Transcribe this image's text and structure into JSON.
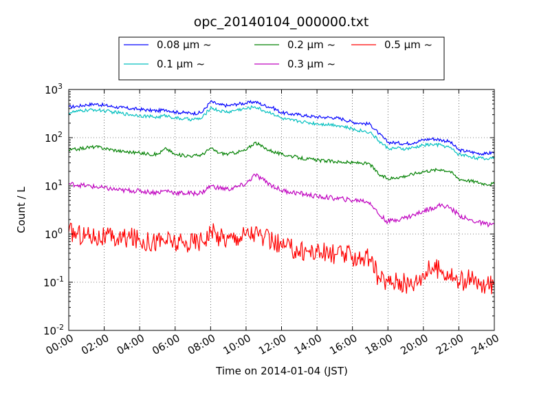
{
  "chart_data": {
    "type": "line",
    "title": "opc_20140104_000000.txt",
    "xlabel": "Time on 2014-01-04 (JST)",
    "ylabel": "Count / L",
    "x_unit": "hours",
    "xlim": [
      0,
      24
    ],
    "ylim": [
      0.01,
      1000
    ],
    "y_scale": "log",
    "grid": true,
    "legend_position": "top-center",
    "x_ticks": [
      "00:00",
      "02:00",
      "04:00",
      "06:00",
      "08:00",
      "10:00",
      "12:00",
      "14:00",
      "16:00",
      "18:00",
      "20:00",
      "22:00",
      "24:00"
    ],
    "y_ticks": [
      {
        "value": 0.01,
        "base": "10",
        "exp": "-2"
      },
      {
        "value": 0.1,
        "base": "10",
        "exp": "-1"
      },
      {
        "value": 1,
        "base": "10",
        "exp": "0"
      },
      {
        "value": 10,
        "base": "10",
        "exp": "1"
      },
      {
        "value": 100,
        "base": "10",
        "exp": "2"
      },
      {
        "value": 1000,
        "base": "10",
        "exp": "3"
      }
    ],
    "series": [
      {
        "name": "0.08 μm ~",
        "color": "#0000ff",
        "x": [
          0,
          0.5,
          1,
          1.5,
          2,
          2.5,
          3,
          3.5,
          4,
          4.5,
          5,
          5.5,
          6,
          6.5,
          7,
          7.5,
          8,
          8.5,
          9,
          9.5,
          10,
          10.5,
          11,
          11.5,
          12,
          12.5,
          13,
          13.5,
          14,
          14.5,
          15,
          15.5,
          16,
          16.5,
          17,
          17.5,
          18,
          18.5,
          19,
          19.5,
          20,
          20.5,
          21,
          21.5,
          22,
          22.5,
          23,
          23.5,
          24
        ],
        "y": [
          430,
          450,
          480,
          500,
          470,
          440,
          420,
          400,
          390,
          370,
          360,
          380,
          340,
          330,
          320,
          330,
          560,
          480,
          460,
          500,
          520,
          560,
          470,
          420,
          330,
          310,
          300,
          280,
          270,
          265,
          260,
          240,
          210,
          200,
          190,
          120,
          80,
          78,
          75,
          80,
          90,
          95,
          90,
          82,
          55,
          52,
          48,
          46,
          50
        ]
      },
      {
        "name": "0.1 μm ~",
        "color": "#00bfbf",
        "x": [
          0,
          0.5,
          1,
          1.5,
          2,
          2.5,
          3,
          3.5,
          4,
          4.5,
          5,
          5.5,
          6,
          6.5,
          7,
          7.5,
          8,
          8.5,
          9,
          9.5,
          10,
          10.5,
          11,
          11.5,
          12,
          12.5,
          13,
          13.5,
          14,
          14.5,
          15,
          15.5,
          16,
          16.5,
          17,
          17.5,
          18,
          18.5,
          19,
          19.5,
          20,
          20.5,
          21,
          21.5,
          22,
          22.5,
          23,
          23.5,
          24
        ],
        "y": [
          330,
          350,
          370,
          380,
          360,
          340,
          320,
          300,
          290,
          275,
          265,
          290,
          255,
          245,
          240,
          250,
          420,
          360,
          340,
          380,
          400,
          440,
          360,
          320,
          250,
          230,
          220,
          205,
          195,
          190,
          185,
          170,
          150,
          140,
          130,
          85,
          60,
          60,
          58,
          62,
          70,
          72,
          70,
          62,
          45,
          42,
          38,
          36,
          40
        ]
      },
      {
        "name": "0.2 μm ~",
        "color": "#008000",
        "x": [
          0,
          0.5,
          1,
          1.5,
          2,
          2.5,
          3,
          3.5,
          4,
          4.5,
          5,
          5.5,
          6,
          6.5,
          7,
          7.5,
          8,
          8.5,
          9,
          9.5,
          10,
          10.5,
          11,
          11.5,
          12,
          12.5,
          13,
          13.5,
          14,
          14.5,
          15,
          15.5,
          16,
          16.5,
          17,
          17.5,
          18,
          18.5,
          19,
          19.5,
          20,
          20.5,
          21,
          21.5,
          22,
          22.5,
          23,
          23.5,
          24
        ],
        "y": [
          55,
          58,
          62,
          65,
          60,
          56,
          52,
          50,
          48,
          46,
          45,
          60,
          44,
          43,
          42,
          44,
          60,
          48,
          46,
          50,
          55,
          80,
          62,
          52,
          45,
          42,
          38,
          36,
          34,
          33,
          32,
          31,
          30,
          30,
          28,
          17,
          14,
          15,
          16,
          18,
          20,
          21,
          22,
          20,
          14,
          13,
          12,
          11,
          11
        ]
      },
      {
        "name": "0.3 μm ~",
        "color": "#bf00bf",
        "x": [
          0,
          0.5,
          1,
          1.5,
          2,
          2.5,
          3,
          3.5,
          4,
          4.5,
          5,
          5.5,
          6,
          6.5,
          7,
          7.5,
          8,
          8.5,
          9,
          9.5,
          10,
          10.5,
          11,
          11.5,
          12,
          12.5,
          13,
          13.5,
          14,
          14.5,
          15,
          15.5,
          16,
          16.5,
          17,
          17.5,
          18,
          18.5,
          19,
          19.5,
          20,
          20.5,
          21,
          21.5,
          22,
          22.5,
          23,
          23.5,
          24
        ],
        "y": [
          11,
          10.5,
          10,
          9.5,
          9,
          8.5,
          8,
          8,
          7.8,
          7.5,
          7.3,
          8,
          7.2,
          7,
          7,
          7.2,
          10,
          9,
          8.5,
          9.5,
          11,
          17,
          13,
          10,
          8,
          7.5,
          7,
          6.5,
          6,
          5.8,
          5.5,
          5.3,
          5,
          5,
          4.5,
          2.5,
          1.8,
          2,
          2.2,
          2.5,
          3,
          3.5,
          4,
          3.5,
          2.5,
          2,
          1.8,
          1.6,
          1.6
        ]
      },
      {
        "name": "0.5 μm ~",
        "color": "#ff0000",
        "x": [
          0,
          0.5,
          1,
          1.5,
          2,
          2.5,
          3,
          3.5,
          4,
          4.5,
          5,
          5.5,
          6,
          6.5,
          7,
          7.5,
          8,
          8.5,
          9,
          9.5,
          10,
          10.5,
          11,
          11.5,
          12,
          12.5,
          13,
          13.5,
          14,
          14.5,
          15,
          15.5,
          16,
          16.5,
          17,
          17.5,
          18,
          18.5,
          19,
          19.5,
          20,
          20.5,
          21,
          21.5,
          22,
          22.5,
          23,
          23.5,
          24
        ],
        "y": [
          1.1,
          1.0,
          0.95,
          0.9,
          0.85,
          0.8,
          0.8,
          0.85,
          0.75,
          0.7,
          0.72,
          0.75,
          0.65,
          0.6,
          0.7,
          0.75,
          1.1,
          0.9,
          0.8,
          0.9,
          1.0,
          1.1,
          0.8,
          0.7,
          0.55,
          0.5,
          0.45,
          0.45,
          0.42,
          0.4,
          0.38,
          0.37,
          0.35,
          0.33,
          0.3,
          0.12,
          0.1,
          0.11,
          0.09,
          0.1,
          0.15,
          0.2,
          0.18,
          0.15,
          0.1,
          0.12,
          0.09,
          0.08,
          0.1
        ]
      }
    ]
  }
}
